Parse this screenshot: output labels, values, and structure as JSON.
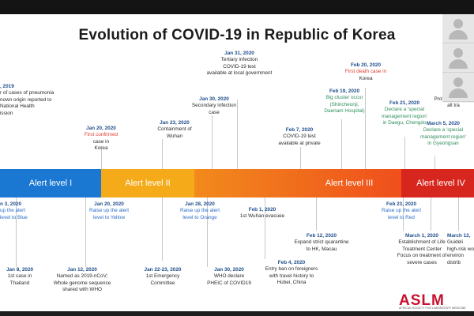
{
  "slide": {
    "title": "Evolution of COVID-19 in Republic of Korea",
    "alert_levels": [
      {
        "label": "Alert level I",
        "color": "#1a78d2"
      },
      {
        "label": "Alert level II",
        "color": "#f5aa1a"
      },
      {
        "label": "Alert level III",
        "color": "#f26a1e"
      },
      {
        "label": "Alert level IV",
        "color": "#d7261e"
      }
    ],
    "above": [
      {
        "date": ", 2019",
        "lines": [
          "r of cases of pneumonia",
          "nown origin reported to",
          "National Health",
          "ission"
        ]
      },
      {
        "date": "Jan 20, 2020",
        "lines": [
          "First confirmed",
          "case in",
          "Korea"
        ]
      },
      {
        "date": "Jan 23, 2020",
        "lines": [
          "Containment of",
          "Wuhan"
        ]
      },
      {
        "date": "Jan 30, 2020",
        "lines": [
          "Secondary infection",
          "case"
        ]
      },
      {
        "date": "Jan 31, 2020",
        "lines": [
          "Tertiary infection",
          "",
          "COVID-19 test",
          "available at local government"
        ]
      },
      {
        "date": "Feb 7, 2020",
        "lines": [
          "COVID-19 test",
          "available at private"
        ]
      },
      {
        "date": "Feb 19, 2020",
        "lines": [
          "Big cluster occur",
          "(Shincheonji,",
          "Daenam Hospital)"
        ]
      },
      {
        "date": "Feb 20, 2020",
        "lines": [
          "First death case in",
          "Korea"
        ]
      },
      {
        "date": "Feb 21, 2020",
        "lines": [
          "Declare a 'special",
          "management region'",
          "in Daegu, Chengdo"
        ]
      },
      {
        "date": "March 5, 2020",
        "lines": [
          "Declare a 'special",
          "management region'",
          "in Gyeongsan"
        ]
      },
      {
        "date": "",
        "lines": [
          "Protection establi",
          "all tra"
        ]
      }
    ],
    "below": [
      {
        "date": "n 3, 2020",
        "lines": [
          "up the alert",
          "level to Blue"
        ]
      },
      {
        "date": "Jan 20, 2020",
        "lines": [
          "Raise up the alert",
          "level to Yellow"
        ]
      },
      {
        "date": "Jan 28, 2020",
        "lines": [
          "Raise up the alert",
          "level to Orange"
        ]
      },
      {
        "date": "Feb 1, 2020",
        "lines": [
          "1st Wuhan evacuee"
        ]
      },
      {
        "date": "Feb 12, 2020",
        "lines": [
          "Expand strict quarantine",
          "to HK, Macau"
        ]
      },
      {
        "date": "Feb 23, 2020",
        "lines": [
          "Raise up the alert",
          "level to Red"
        ]
      },
      {
        "date": "March 1, 2020",
        "lines": [
          "Establishment of Life",
          "Treatment Center",
          "",
          "Focus on treatment of",
          "severe cases"
        ]
      },
      {
        "date": "March 12, ",
        "lines": [
          "Guideli",
          "high-risk wo",
          "environ",
          "distrib"
        ]
      },
      {
        "date": "Jan 8, 2020",
        "lines": [
          "1st case in",
          "Thailand"
        ]
      },
      {
        "date": "Jan 12, 2020",
        "lines": [
          "Named as 2019-nCoV;",
          "Whole genome sequence",
          "shared with WHO"
        ]
      },
      {
        "date": "Jan 22-23, 2020",
        "lines": [
          "1st Emergency",
          "Committee"
        ]
      },
      {
        "date": "Jan 30, 2020",
        "lines": [
          "WHO declare",
          "PHEIC of COVID19"
        ]
      },
      {
        "date": "Feb 4, 2020",
        "lines": [
          "Entry ban on foreigners",
          "with travel history to",
          "Hubei, China"
        ]
      }
    ],
    "logo": {
      "word": "ASLM",
      "tagline": "AFRICAN SOCIETY FOR LABORATORY MEDICINE"
    }
  },
  "colors": {
    "date_blue": "#1f4e8c",
    "red": "#e03a2e",
    "teal": "#2f8f5c"
  }
}
